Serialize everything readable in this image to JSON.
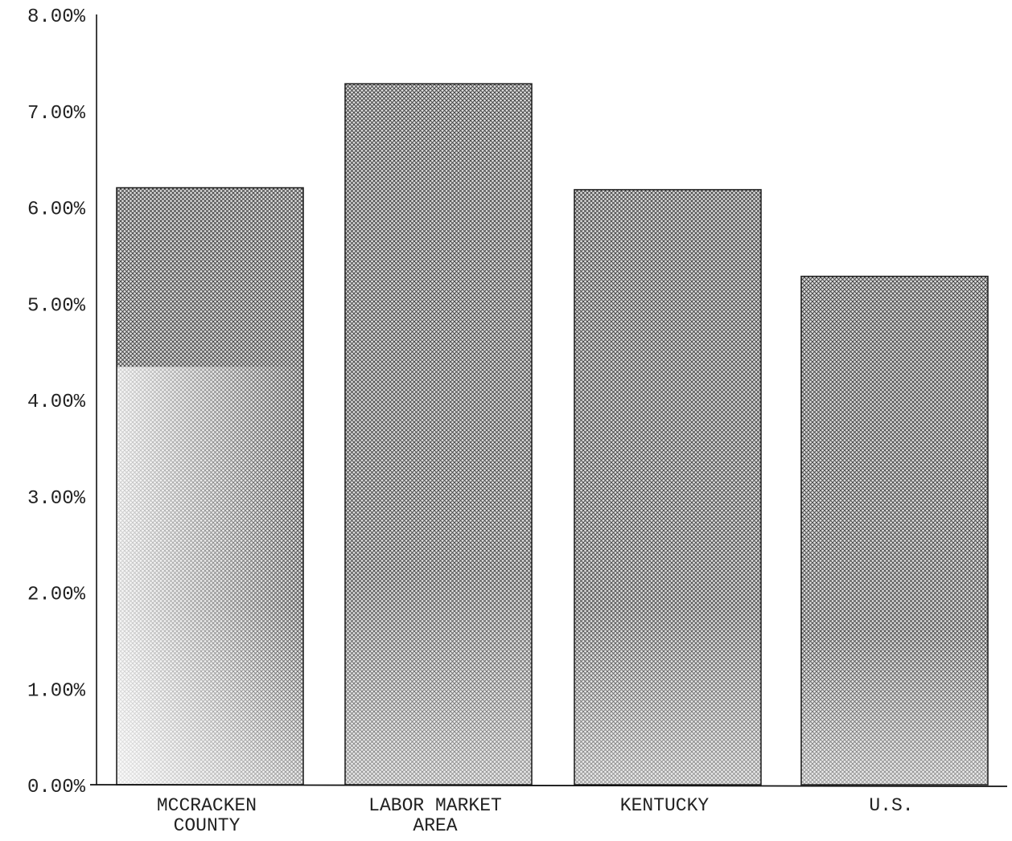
{
  "chart_data": {
    "type": "bar",
    "title": "",
    "xlabel": "",
    "ylabel": "",
    "categories": [
      [
        "MCCRACKEN",
        "COUNTY"
      ],
      [
        "LABOR MARKET",
        "AREA"
      ],
      [
        "KENTUCKY"
      ],
      [
        "U.S."
      ]
    ],
    "values": [
      6.2,
      7.28,
      6.18,
      5.28
    ],
    "ylim": [
      0,
      8
    ],
    "yticks": [
      0,
      1,
      2,
      3,
      4,
      5,
      6,
      7,
      8
    ],
    "ytick_labels": [
      "0.00%",
      "1.00%",
      "2.00%",
      "3.00%",
      "4.00%",
      "5.00%",
      "6.00%",
      "7.00%",
      "8.00%"
    ],
    "grid": false,
    "legend": "none",
    "colors": {
      "axis": "#111111",
      "bar_outline": "#222222",
      "bar_fill_dark": "#4a4a4a",
      "bar_fill_light": "#f2f2f2"
    }
  }
}
